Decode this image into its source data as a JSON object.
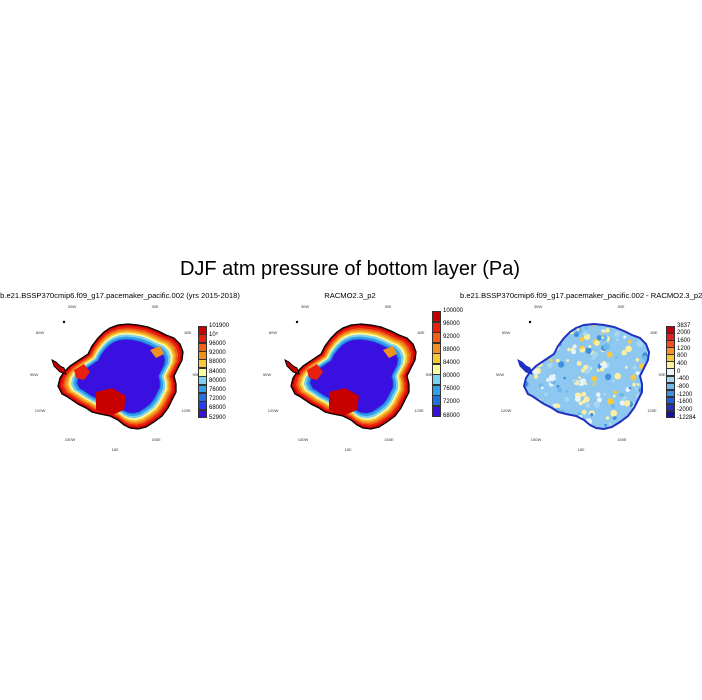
{
  "title": "DJF atm pressure of bottom layer (Pa)",
  "panels": [
    {
      "id": "model",
      "title": "b.e21.BSSP370cmip6.f09_g17.pacemaker_pacific.002 (yrs 2015-2018)",
      "colorbar": {
        "labels": [
          "101900",
          "10⁵",
          "96000",
          "92000",
          "88000",
          "84000",
          "80000",
          "76000",
          "72000",
          "68000",
          "52900"
        ],
        "colors": [
          "#c80000",
          "#e82010",
          "#f06018",
          "#f09020",
          "#f8c838",
          "#fcfc9c",
          "#7fd0f0",
          "#30a0e8",
          "#2070e0",
          "#2a3cf0",
          "#3a10e0"
        ]
      },
      "lon_labels": [
        "30W",
        "30E",
        "60W",
        "60E",
        "90W",
        "90E",
        "120W",
        "120E",
        "150W",
        "150E",
        "180"
      ]
    },
    {
      "id": "racmo",
      "title": "RACMO2.3_p2",
      "colorbar": {
        "labels": [
          "100000",
          "96000",
          "92000",
          "88000",
          "84000",
          "80000",
          "76000",
          "72000",
          "68000"
        ],
        "colors": [
          "#c80000",
          "#e82010",
          "#f06018",
          "#f09020",
          "#f8c838",
          "#fcfc9c",
          "#7fd0f0",
          "#30a0e8",
          "#2070e0",
          "#3a10e0"
        ]
      },
      "lon_labels": [
        "30W",
        "30E",
        "60W",
        "60E",
        "90W",
        "90E",
        "120W",
        "120E",
        "150W",
        "150E",
        "180"
      ]
    },
    {
      "id": "difference",
      "title": "b.e21.BSSP370cmip6.f09_g17.pacemaker_pacific.002 - RACMO2.3_p2",
      "colorbar": {
        "labels": [
          "3837",
          "2000",
          "1600",
          "1200",
          "800",
          "400",
          "0",
          "-400",
          "-800",
          "-1200",
          "-1600",
          "-2000",
          "-12284"
        ],
        "colors": [
          "#c00010",
          "#e02020",
          "#f05020",
          "#f89028",
          "#f8c840",
          "#fcf0a0",
          "#e8f4fc",
          "#a8d8f0",
          "#70b8e8",
          "#4090e0",
          "#2060d8",
          "#2030c0",
          "#1a10a0"
        ]
      },
      "lon_labels": [
        "30W",
        "30E",
        "60W",
        "60E",
        "90W",
        "90E",
        "120W",
        "120E",
        "150W",
        "150E",
        "180"
      ]
    }
  ]
}
